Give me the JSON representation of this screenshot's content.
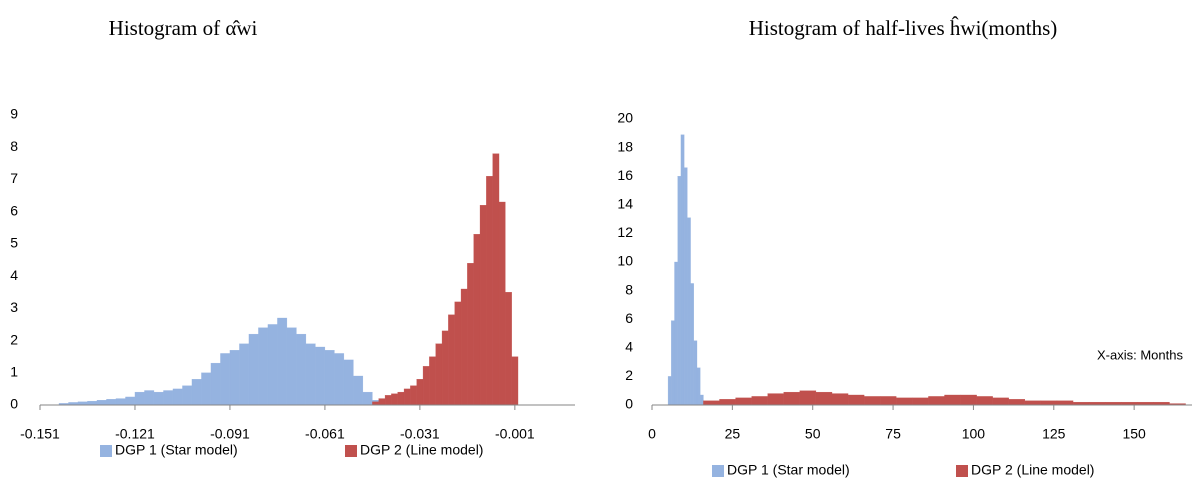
{
  "chart_data": [
    {
      "type": "histogram",
      "title": "Histogram of α̂wi",
      "xlim": [
        -0.151,
        0.018
      ],
      "xticks": [
        -0.151,
        -0.121,
        -0.091,
        -0.061,
        -0.031,
        -0.001
      ],
      "ylim": [
        0,
        9
      ],
      "yticks": [
        0,
        1,
        2,
        3,
        4,
        5,
        6,
        7,
        8,
        9
      ],
      "grid": false,
      "legend": "bottom",
      "series": [
        {
          "name": "DGP 1 (Star model)",
          "color": "#95b3e0",
          "bins": [
            -0.145,
            -0.142,
            -0.139,
            -0.136,
            -0.133,
            -0.13,
            -0.127,
            -0.124,
            -0.121,
            -0.118,
            -0.115,
            -0.112,
            -0.109,
            -0.106,
            -0.103,
            -0.1,
            -0.097,
            -0.094,
            -0.091,
            -0.088,
            -0.085,
            -0.082,
            -0.079,
            -0.076,
            -0.073,
            -0.07,
            -0.067,
            -0.064,
            -0.061,
            -0.058,
            -0.055,
            -0.052,
            -0.049,
            -0.046,
            -0.043
          ],
          "values": [
            0.05,
            0.08,
            0.1,
            0.12,
            0.15,
            0.18,
            0.2,
            0.25,
            0.4,
            0.45,
            0.4,
            0.45,
            0.5,
            0.6,
            0.8,
            1.0,
            1.3,
            1.6,
            1.7,
            1.9,
            2.2,
            2.4,
            2.5,
            2.7,
            2.4,
            2.2,
            1.9,
            1.8,
            1.7,
            1.6,
            1.4,
            0.9,
            0.4,
            0.15
          ]
        },
        {
          "name": "DGP 2 (Line model)",
          "color": "#c0504d",
          "bins": [
            -0.046,
            -0.044,
            -0.042,
            -0.04,
            -0.038,
            -0.036,
            -0.034,
            -0.032,
            -0.03,
            -0.028,
            -0.026,
            -0.024,
            -0.022,
            -0.02,
            -0.018,
            -0.016,
            -0.014,
            -0.012,
            -0.01,
            -0.008,
            -0.006,
            -0.004,
            -0.002,
            0
          ],
          "values": [
            0.1,
            0.2,
            0.3,
            0.35,
            0.4,
            0.5,
            0.6,
            0.8,
            1.2,
            1.5,
            1.9,
            2.3,
            2.8,
            3.2,
            3.6,
            4.4,
            5.3,
            6.2,
            7.1,
            7.8,
            6.3,
            3.5,
            1.5
          ]
        }
      ]
    },
    {
      "type": "histogram",
      "title": "Histogram of half-lives ĥwi(months)",
      "annotation": "X-axis: Months",
      "xlim": [
        0,
        168
      ],
      "xticks": [
        0,
        25,
        50,
        75,
        100,
        125,
        150
      ],
      "ylim": [
        0,
        20
      ],
      "yticks": [
        0,
        2,
        4,
        6,
        8,
        10,
        12,
        14,
        16,
        18,
        20
      ],
      "grid": false,
      "legend": "bottom",
      "series": [
        {
          "name": "DGP 1 (Star model)",
          "color": "#95b3e0",
          "bins": [
            5,
            6,
            7,
            8,
            9,
            10,
            11,
            12,
            13,
            14,
            15,
            16,
            17
          ],
          "values": [
            2,
            5.9,
            10,
            16,
            18.9,
            16.6,
            13.1,
            8.5,
            4.5,
            2.6,
            0.7,
            0.1
          ]
        },
        {
          "name": "DGP 2 (Line model)",
          "color": "#c0504d",
          "bins": [
            16,
            21,
            26,
            31,
            36,
            41,
            46,
            51,
            56,
            61,
            66,
            71,
            76,
            81,
            86,
            91,
            96,
            101,
            106,
            111,
            116,
            121,
            126,
            131,
            136,
            141,
            146,
            151,
            156,
            161,
            166
          ],
          "values": [
            0.3,
            0.4,
            0.5,
            0.6,
            0.8,
            0.9,
            1.0,
            0.9,
            0.8,
            0.7,
            0.6,
            0.6,
            0.5,
            0.5,
            0.6,
            0.7,
            0.7,
            0.6,
            0.5,
            0.4,
            0.3,
            0.3,
            0.3,
            0.2,
            0.2,
            0.2,
            0.2,
            0.2,
            0.2,
            0.1
          ]
        }
      ]
    }
  ]
}
